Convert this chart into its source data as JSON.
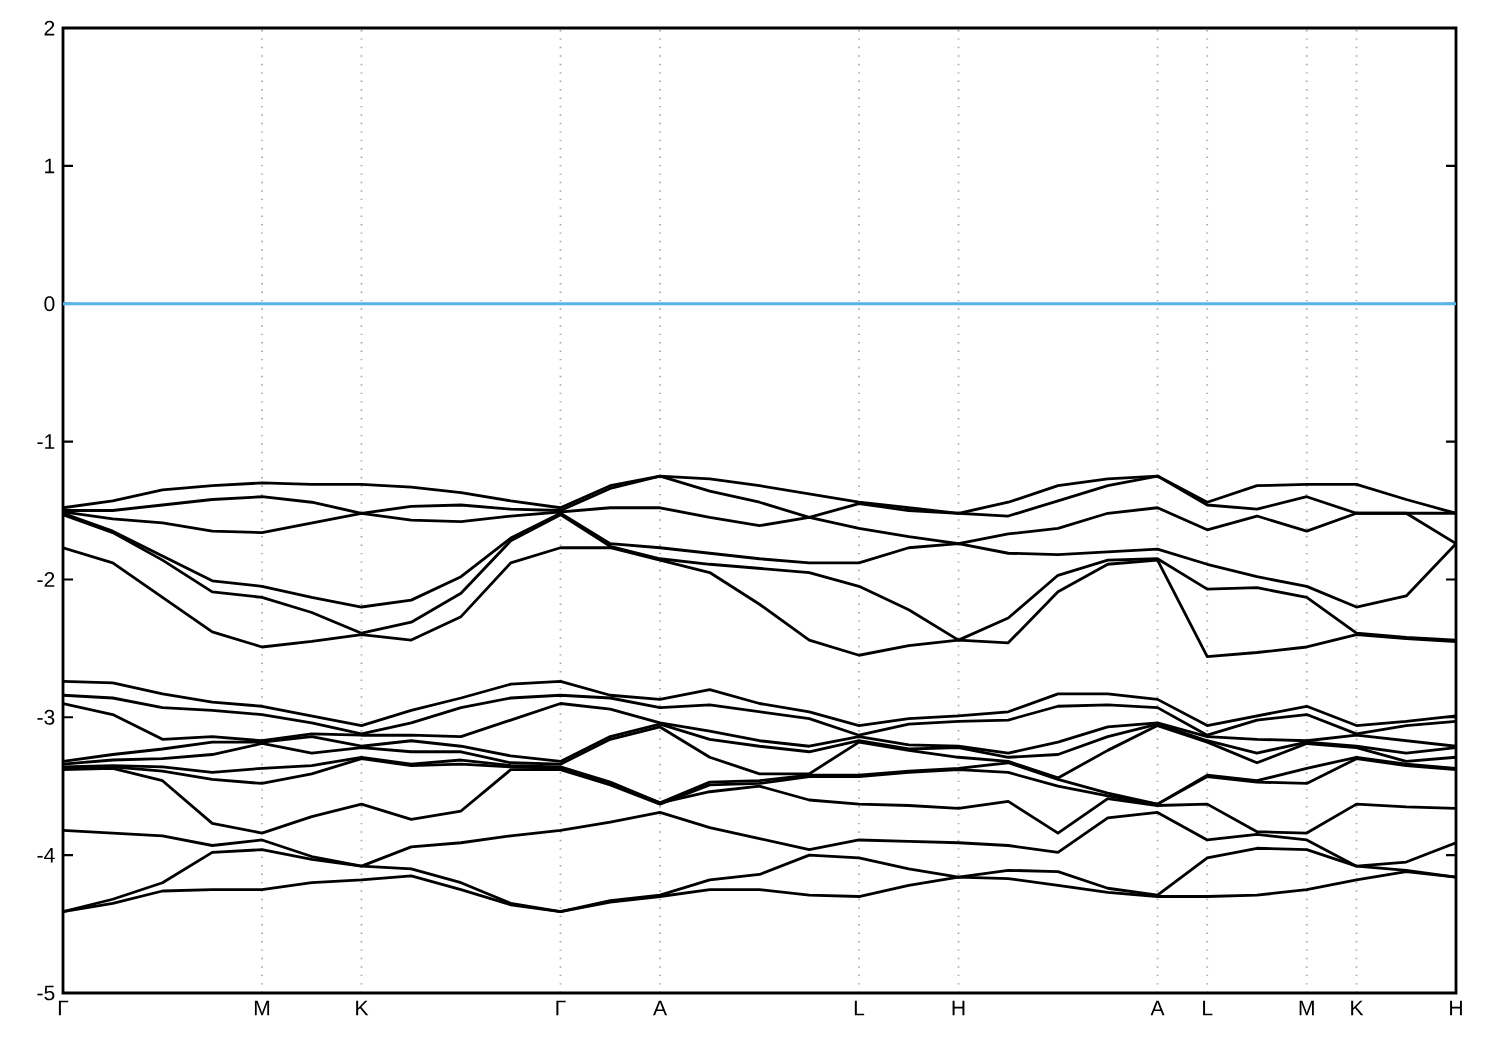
{
  "chart_data": {
    "type": "line",
    "categories": [
      "Γ",
      null,
      null,
      null,
      "M",
      null,
      "K",
      null,
      null,
      null,
      "Γ",
      null,
      "A",
      null,
      null,
      null,
      "L",
      null,
      "H",
      null,
      null,
      null,
      "A",
      "L",
      null,
      "M",
      "K",
      null,
      "H"
    ],
    "ylim": [
      -5,
      2
    ],
    "yticks": [
      -5,
      -4,
      -3,
      -2,
      -1,
      0,
      1,
      2
    ],
    "grid": "x",
    "line_style": "solid",
    "marker": "none",
    "ref_lines": [
      {
        "axis": "y",
        "value": 0,
        "color": "#56b4e9"
      }
    ],
    "series": [
      {
        "color": "#000000",
        "values": [
          -1.48,
          -1.43,
          -1.35,
          -1.32,
          -1.3,
          -1.31,
          -1.31,
          -1.33,
          -1.37,
          -1.43,
          -1.48,
          -1.32,
          -1.25,
          -1.27,
          -1.32,
          -1.38,
          -1.44,
          -1.48,
          -1.52,
          -1.44,
          -1.32,
          -1.27,
          -1.25,
          -1.44,
          -1.32,
          -1.31,
          -1.31,
          -1.42,
          -1.52
        ]
      },
      {
        "color": "#000000",
        "values": [
          -1.5,
          -1.5,
          -1.46,
          -1.42,
          -1.4,
          -1.44,
          -1.52,
          -1.47,
          -1.46,
          -1.49,
          -1.5,
          -1.34,
          -1.25,
          -1.36,
          -1.44,
          -1.55,
          -1.45,
          -1.5,
          -1.52,
          -1.54,
          -1.43,
          -1.32,
          -1.25,
          -1.46,
          -1.49,
          -1.4,
          -1.52,
          -1.52,
          -1.52
        ]
      },
      {
        "color": "#000000",
        "values": [
          -1.51,
          -1.56,
          -1.59,
          -1.65,
          -1.66,
          -1.59,
          -1.52,
          -1.57,
          -1.58,
          -1.54,
          -1.51,
          -1.48,
          -1.48,
          -1.55,
          -1.61,
          -1.55,
          -1.63,
          -1.69,
          -1.74,
          -1.67,
          -1.63,
          -1.52,
          -1.48,
          -1.64,
          -1.54,
          -1.65,
          -1.52,
          -1.52,
          -1.74
        ]
      },
      {
        "color": "#000000",
        "values": [
          -1.52,
          -1.65,
          -1.83,
          -2.01,
          -2.05,
          -2.13,
          -2.2,
          -2.15,
          -1.98,
          -1.7,
          -1.52,
          -1.74,
          -1.77,
          -1.81,
          -1.85,
          -1.88,
          -1.88,
          -1.77,
          -1.74,
          -1.81,
          -1.82,
          -1.8,
          -1.78,
          -1.89,
          -1.98,
          -2.05,
          -2.2,
          -2.12,
          -1.74
        ]
      },
      {
        "color": "#000000",
        "values": [
          -1.53,
          -1.66,
          -1.86,
          -2.09,
          -2.13,
          -2.24,
          -2.39,
          -2.31,
          -2.1,
          -1.72,
          -1.53,
          -1.76,
          -1.85,
          -1.89,
          -1.92,
          -1.95,
          -2.05,
          -2.22,
          -2.44,
          -2.28,
          -1.97,
          -1.86,
          -1.85,
          -2.07,
          -2.06,
          -2.13,
          -2.39,
          -2.42,
          -2.44
        ]
      },
      {
        "color": "#000000",
        "values": [
          -1.77,
          -1.88,
          -2.13,
          -2.38,
          -2.49,
          -2.45,
          -2.4,
          -2.44,
          -2.27,
          -1.88,
          -1.77,
          -1.77,
          -1.86,
          -1.95,
          -2.18,
          -2.44,
          -2.55,
          -2.48,
          -2.44,
          -2.46,
          -2.09,
          -1.89,
          -1.86,
          -2.56,
          -2.53,
          -2.49,
          -2.4,
          -2.43,
          -2.45
        ]
      },
      {
        "color": "#000000",
        "values": [
          -2.74,
          -2.75,
          -2.83,
          -2.89,
          -2.92,
          -2.99,
          -3.06,
          -2.95,
          -2.86,
          -2.76,
          -2.74,
          -2.84,
          -2.87,
          -2.8,
          -2.9,
          -2.96,
          -3.06,
          -3.01,
          -2.99,
          -2.96,
          -2.83,
          -2.83,
          -2.87,
          -3.06,
          -2.99,
          -2.92,
          -3.06,
          -3.03,
          -2.99
        ]
      },
      {
        "color": "#000000",
        "values": [
          -2.84,
          -2.86,
          -2.93,
          -2.95,
          -2.98,
          -3.04,
          -3.12,
          -3.04,
          -2.93,
          -2.86,
          -2.84,
          -2.86,
          -2.93,
          -2.91,
          -2.96,
          -3.01,
          -3.13,
          -3.05,
          -3.03,
          -3.02,
          -2.92,
          -2.91,
          -2.93,
          -3.13,
          -3.02,
          -2.98,
          -3.12,
          -3.06,
          -3.03
        ]
      },
      {
        "color": "#000000",
        "values": [
          -2.9,
          -2.98,
          -3.16,
          -3.14,
          -3.17,
          -3.12,
          -3.13,
          -3.13,
          -3.14,
          -3.02,
          -2.9,
          -2.94,
          -3.04,
          -3.1,
          -3.17,
          -3.21,
          -3.14,
          -3.2,
          -3.21,
          -3.26,
          -3.18,
          -3.07,
          -3.04,
          -3.14,
          -3.16,
          -3.17,
          -3.13,
          -3.17,
          -3.21
        ]
      },
      {
        "color": "#000000",
        "values": [
          -3.32,
          -3.27,
          -3.23,
          -3.18,
          -3.18,
          -3.14,
          -3.21,
          -3.17,
          -3.21,
          -3.28,
          -3.32,
          -3.14,
          -3.05,
          -3.16,
          -3.21,
          -3.25,
          -3.17,
          -3.23,
          -3.22,
          -3.29,
          -3.27,
          -3.14,
          -3.05,
          -3.17,
          -3.26,
          -3.18,
          -3.21,
          -3.26,
          -3.22
        ]
      },
      {
        "color": "#000000",
        "values": [
          -3.34,
          -3.31,
          -3.3,
          -3.27,
          -3.19,
          -3.26,
          -3.22,
          -3.25,
          -3.25,
          -3.33,
          -3.34,
          -3.16,
          -3.07,
          -3.29,
          -3.41,
          -3.41,
          -3.18,
          -3.24,
          -3.29,
          -3.32,
          -3.44,
          -3.24,
          -3.06,
          -3.18,
          -3.33,
          -3.19,
          -3.22,
          -3.32,
          -3.29
        ]
      },
      {
        "color": "#000000",
        "values": [
          -3.36,
          -3.35,
          -3.36,
          -3.4,
          -3.37,
          -3.35,
          -3.29,
          -3.34,
          -3.31,
          -3.35,
          -3.36,
          -3.47,
          -3.62,
          -3.47,
          -3.46,
          -3.42,
          -3.42,
          -3.39,
          -3.37,
          -3.33,
          -3.45,
          -3.55,
          -3.63,
          -3.42,
          -3.46,
          -3.37,
          -3.29,
          -3.34,
          -3.37
        ]
      },
      {
        "color": "#000000",
        "values": [
          -3.37,
          -3.36,
          -3.39,
          -3.45,
          -3.48,
          -3.41,
          -3.3,
          -3.35,
          -3.34,
          -3.36,
          -3.37,
          -3.48,
          -3.62,
          -3.54,
          -3.5,
          -3.6,
          -3.63,
          -3.64,
          -3.66,
          -3.61,
          -3.84,
          -3.59,
          -3.64,
          -3.63,
          -3.83,
          -3.84,
          -3.63,
          -3.65,
          -3.66
        ]
      },
      {
        "color": "#000000",
        "values": [
          -3.38,
          -3.37,
          -3.46,
          -3.77,
          -3.84,
          -3.72,
          -3.63,
          -3.74,
          -3.68,
          -3.38,
          -3.38,
          -3.49,
          -3.63,
          -3.49,
          -3.48,
          -3.43,
          -3.43,
          -3.4,
          -3.38,
          -3.4,
          -3.5,
          -3.57,
          -3.63,
          -3.43,
          -3.47,
          -3.48,
          -3.3,
          -3.35,
          -3.38
        ]
      },
      {
        "color": "#000000",
        "values": [
          -3.82,
          -3.84,
          -3.86,
          -3.93,
          -3.89,
          -4.01,
          -4.08,
          -4.1,
          -4.2,
          -4.35,
          -4.41,
          -4.33,
          -4.29,
          -4.18,
          -4.14,
          -4.0,
          -4.02,
          -4.1,
          -4.16,
          -4.11,
          -4.12,
          -4.24,
          -4.29,
          -4.02,
          -3.95,
          -3.96,
          -4.08,
          -4.11,
          -4.16
        ]
      },
      {
        "color": "#000000",
        "values": [
          -4.41,
          -4.32,
          -4.2,
          -3.98,
          -3.96,
          -4.03,
          -4.08,
          -3.94,
          -3.91,
          -3.86,
          -3.82,
          -3.76,
          -3.69,
          -3.8,
          -3.88,
          -3.96,
          -3.89,
          -3.9,
          -3.91,
          -3.93,
          -3.98,
          -3.73,
          -3.69,
          -3.89,
          -3.85,
          -3.89,
          -4.08,
          -4.05,
          -3.91
        ]
      },
      {
        "color": "#000000",
        "values": [
          -4.41,
          -4.35,
          -4.26,
          -4.25,
          -4.25,
          -4.2,
          -4.18,
          -4.15,
          -4.25,
          -4.36,
          -4.41,
          -4.34,
          -4.3,
          -4.25,
          -4.25,
          -4.29,
          -4.3,
          -4.22,
          -4.16,
          -4.17,
          -4.22,
          -4.27,
          -4.3,
          -4.3,
          -4.29,
          -4.25,
          -4.18,
          -4.12,
          -4.16
        ]
      }
    ]
  }
}
